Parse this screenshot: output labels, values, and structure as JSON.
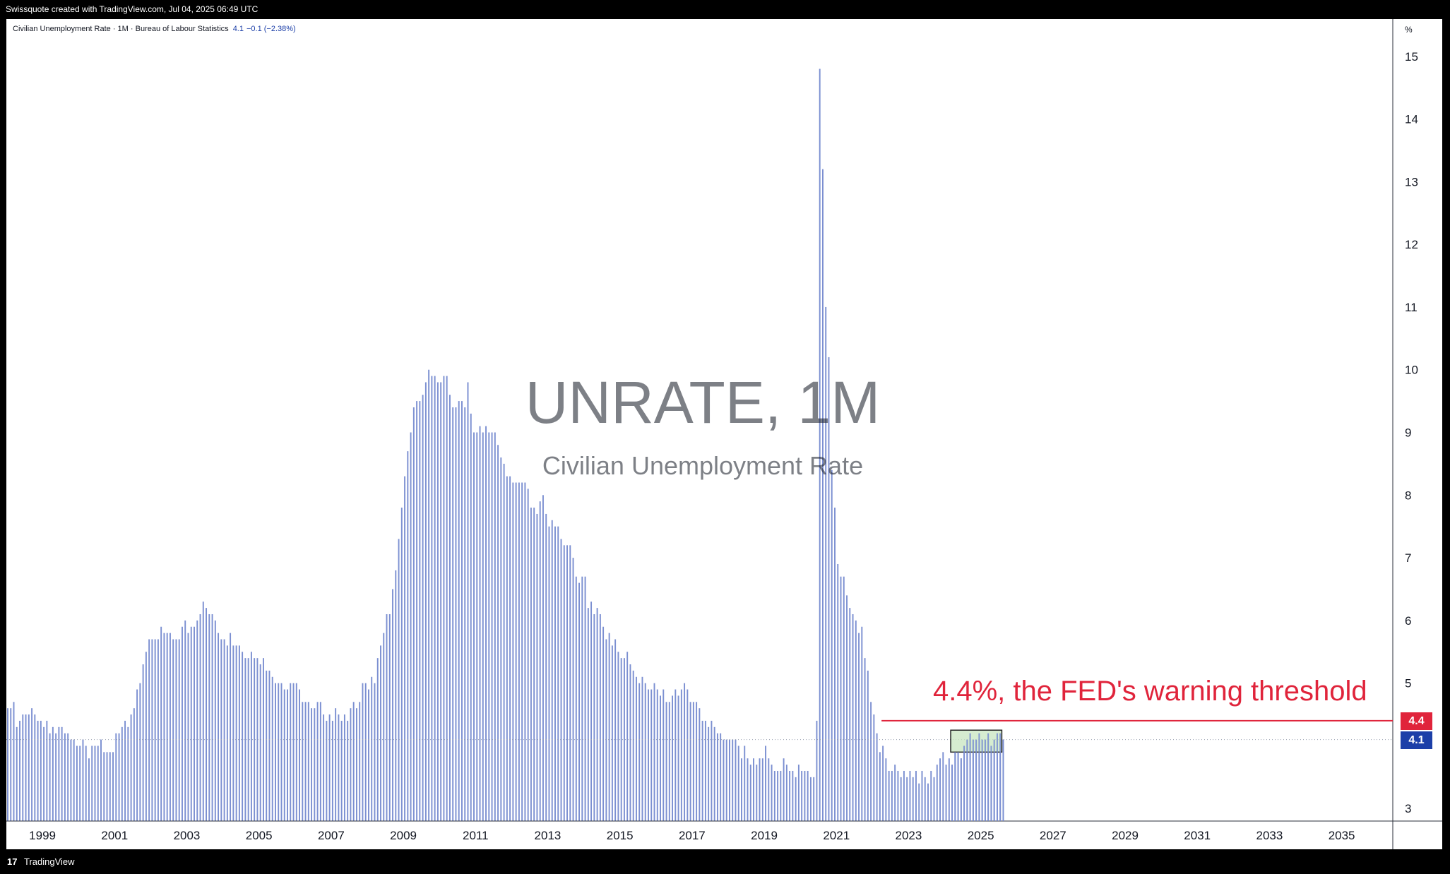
{
  "header": {
    "credit": "Swissquote created with TradingView.com, Jul 04, 2025 06:49 UTC"
  },
  "legend": {
    "symbol_text": "Civilian Unemployment Rate · 1M · Bureau of Labour Statistics",
    "last_value": "4.1",
    "change": "−0.1 (−2.38%)"
  },
  "watermark": {
    "title": "UNRATE, 1M",
    "subtitle": "Civilian Unemployment Rate"
  },
  "annotation": {
    "text": "4.4%, the FED's warning threshold"
  },
  "axis": {
    "unit": "%",
    "y_ticks": [
      "3",
      "5",
      "6",
      "7",
      "8",
      "9",
      "10",
      "11",
      "12",
      "13",
      "14",
      "15"
    ],
    "x_ticks": [
      "1999",
      "2001",
      "2003",
      "2005",
      "2007",
      "2009",
      "2011",
      "2013",
      "2015",
      "2017",
      "2019",
      "2021",
      "2023",
      "2025",
      "2027",
      "2029",
      "2031",
      "2033",
      "2035"
    ]
  },
  "price_tags": {
    "threshold": "4.4",
    "last": "4.1"
  },
  "footer": {
    "brand": "TradingView",
    "logo_glyph": "17"
  },
  "colors": {
    "bar": "#7b8fd1",
    "threshold_line": "#e0243b",
    "threshold_tag": "#e0243b",
    "last_tag": "#1c3fa8",
    "highlight_fill": "#c8e6c0",
    "highlight_border": "#222222"
  },
  "chart_data": {
    "type": "bar",
    "title": "UNRATE, 1M",
    "subtitle": "Civilian Unemployment Rate",
    "x_start": "1998-01",
    "frequency": "monthly",
    "ylim": [
      2.8,
      15.2
    ],
    "xlim": [
      "1998-01",
      "2036-06"
    ],
    "series": [
      {
        "values": [
          4.6,
          4.6,
          4.7,
          4.3,
          4.4,
          4.5,
          4.5,
          4.5,
          4.6,
          4.5,
          4.4,
          4.4,
          4.3,
          4.4,
          4.2,
          4.3,
          4.2,
          4.3,
          4.3,
          4.2,
          4.2,
          4.1,
          4.1,
          4.0,
          4.0,
          4.1,
          4.0,
          3.8,
          4.0,
          4.0,
          4.0,
          4.1,
          3.9,
          3.9,
          3.9,
          3.9,
          4.2,
          4.2,
          4.3,
          4.4,
          4.3,
          4.5,
          4.6,
          4.9,
          5.0,
          5.3,
          5.5,
          5.7,
          5.7,
          5.7,
          5.7,
          5.9,
          5.8,
          5.8,
          5.8,
          5.7,
          5.7,
          5.7,
          5.9,
          6.0,
          5.8,
          5.9,
          5.9,
          6.0,
          6.1,
          6.3,
          6.2,
          6.1,
          6.1,
          6.0,
          5.8,
          5.7,
          5.7,
          5.6,
          5.8,
          5.6,
          5.6,
          5.6,
          5.5,
          5.4,
          5.4,
          5.5,
          5.4,
          5.4,
          5.3,
          5.4,
          5.2,
          5.2,
          5.1,
          5.0,
          5.0,
          5.0,
          4.9,
          4.9,
          5.0,
          5.0,
          5.0,
          4.9,
          4.7,
          4.7,
          4.7,
          4.6,
          4.6,
          4.7,
          4.7,
          4.5,
          4.4,
          4.5,
          4.4,
          4.6,
          4.5,
          4.4,
          4.5,
          4.4,
          4.6,
          4.7,
          4.6,
          4.7,
          5.0,
          5.0,
          4.9,
          5.1,
          5.0,
          5.4,
          5.6,
          5.8,
          6.1,
          6.1,
          6.5,
          6.8,
          7.3,
          7.8,
          8.3,
          8.7,
          9.0,
          9.4,
          9.5,
          9.5,
          9.6,
          9.8,
          10.0,
          9.9,
          9.9,
          9.8,
          9.8,
          9.9,
          9.9,
          9.6,
          9.4,
          9.4,
          9.5,
          9.5,
          9.4,
          9.8,
          9.3,
          9.0,
          9.0,
          9.1,
          9.0,
          9.1,
          9.0,
          9.0,
          9.0,
          8.8,
          8.6,
          8.5,
          8.3,
          8.3,
          8.2,
          8.2,
          8.2,
          8.2,
          8.2,
          8.1,
          7.8,
          7.8,
          7.7,
          7.9,
          8.0,
          7.7,
          7.5,
          7.6,
          7.5,
          7.5,
          7.3,
          7.2,
          7.2,
          7.2,
          7.0,
          6.7,
          6.6,
          6.7,
          6.7,
          6.2,
          6.3,
          6.1,
          6.2,
          6.1,
          5.9,
          5.7,
          5.8,
          5.6,
          5.7,
          5.5,
          5.4,
          5.4,
          5.5,
          5.3,
          5.2,
          5.1,
          5.0,
          5.1,
          5.0,
          4.9,
          4.9,
          5.0,
          4.9,
          4.8,
          4.9,
          4.7,
          4.7,
          4.8,
          4.9,
          4.8,
          4.9,
          5.0,
          4.9,
          4.7,
          4.7,
          4.7,
          4.6,
          4.4,
          4.4,
          4.3,
          4.4,
          4.3,
          4.2,
          4.2,
          4.1,
          4.1,
          4.1,
          4.1,
          4.1,
          4.0,
          3.8,
          4.0,
          3.8,
          3.7,
          3.8,
          3.7,
          3.8,
          3.8,
          4.0,
          3.8,
          3.7,
          3.6,
          3.6,
          3.6,
          3.8,
          3.7,
          3.6,
          3.6,
          3.5,
          3.7,
          3.6,
          3.6,
          3.6,
          3.5,
          3.5,
          4.4,
          14.8,
          13.2,
          11.0,
          10.2,
          8.4,
          7.8,
          6.9,
          6.7,
          6.7,
          6.4,
          6.2,
          6.1,
          6.0,
          5.8,
          5.9,
          5.4,
          5.2,
          4.7,
          4.5,
          4.2,
          3.9,
          4.0,
          3.8,
          3.6,
          3.6,
          3.7,
          3.6,
          3.5,
          3.6,
          3.5,
          3.6,
          3.5,
          3.6,
          3.4,
          3.6,
          3.5,
          3.4,
          3.6,
          3.5,
          3.7,
          3.8,
          3.9,
          3.7,
          3.8,
          3.7,
          3.9,
          3.9,
          3.8,
          4.0,
          4.1,
          4.2,
          4.1,
          4.1,
          4.2,
          4.1,
          4.1,
          4.2,
          4.0,
          4.1,
          4.2,
          4.2,
          4.1
        ]
      }
    ],
    "threshold": {
      "value": 4.4,
      "from": "2022-04",
      "label": "4.4%, the FED's warning threshold"
    },
    "last_value": 4.1,
    "highlight_box": {
      "from": "2024-03",
      "to": "2025-08",
      "y_low": 3.9,
      "y_high": 4.25
    },
    "grid": false,
    "legend": "top-left"
  }
}
